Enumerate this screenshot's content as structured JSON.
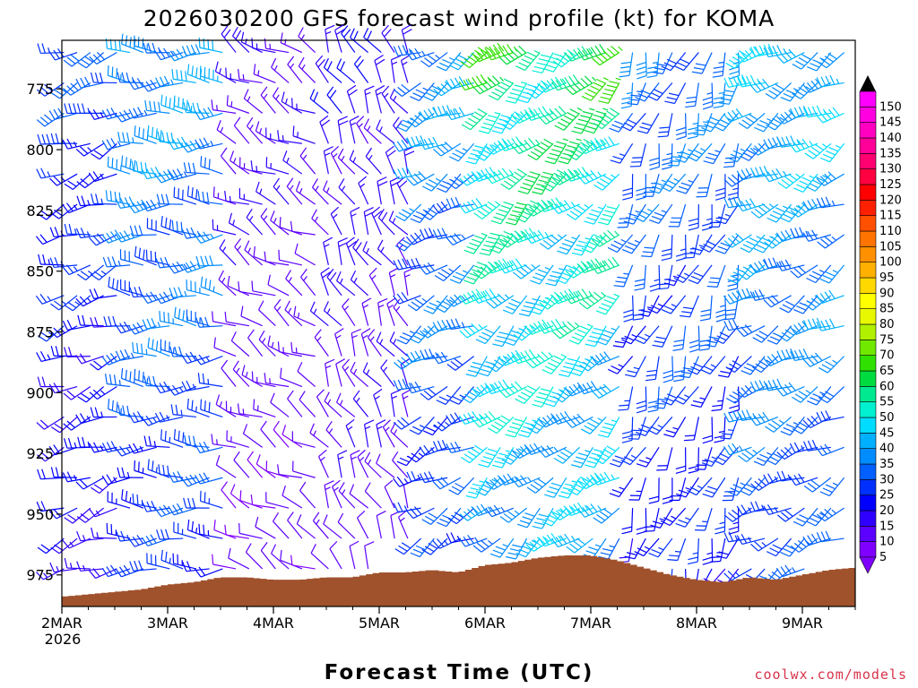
{
  "chart_data": {
    "type": "wind_barb_time_height",
    "title": "2026030200 GFS forecast wind profile (kt) for KOMA",
    "xlabel": "Forecast Time (UTC)",
    "credit": "coolwx.com/models",
    "y_axis": {
      "ticks": [
        775,
        800,
        825,
        850,
        875,
        900,
        925,
        950,
        975
      ],
      "tick_labels": [
        "775",
        "800",
        "825",
        "850",
        "875",
        "900",
        "925",
        "950",
        "975"
      ],
      "range_hpa": [
        755,
        988
      ],
      "inverted": true
    },
    "x_axis": {
      "start_day": 2,
      "end_day": 9.5,
      "tick_days": [
        2,
        3,
        4,
        5,
        6,
        7,
        8,
        9
      ],
      "tick_labels": [
        "2MAR",
        "3MAR",
        "4MAR",
        "5MAR",
        "6MAR",
        "7MAR",
        "8MAR",
        "9MAR"
      ],
      "year_label": "2026"
    },
    "colorbar": {
      "levels": [
        5,
        10,
        15,
        20,
        25,
        30,
        35,
        40,
        45,
        50,
        55,
        60,
        65,
        70,
        75,
        80,
        85,
        90,
        95,
        100,
        105,
        110,
        115,
        120,
        125,
        130,
        135,
        140,
        145,
        150
      ],
      "labels": [
        "5",
        "10",
        "15",
        "20",
        "25",
        "30",
        "35",
        "40",
        "45",
        "50",
        "55",
        "60",
        "65",
        "70",
        "75",
        "80",
        "85",
        "90",
        "95",
        "100",
        "105",
        "110",
        "115",
        "120",
        "125",
        "130",
        "135",
        "140",
        "145",
        "150"
      ],
      "colors": [
        "#7f00ff",
        "#5c00ff",
        "#3000ff",
        "#0000ff",
        "#0030ff",
        "#0060ff",
        "#008cff",
        "#00b0ff",
        "#00dcff",
        "#00f0d0",
        "#00e890",
        "#00dc40",
        "#30e000",
        "#70e800",
        "#b0f000",
        "#e8f800",
        "#ffff00",
        "#ffd800",
        "#ffb000",
        "#ff9000",
        "#ff7400",
        "#ff5000",
        "#ff2000",
        "#ff0000",
        "#ff0040",
        "#ff0070",
        "#ff0098",
        "#ff00c0",
        "#ff00e0",
        "#ff00ff"
      ],
      "low_arrow_color": "#8000ff",
      "high_arrow_color": "#000000"
    },
    "terrain": {
      "color": "#a0522d",
      "surface_pressure_hpa": [
        [
          2.0,
          984
        ],
        [
          2.25,
          983
        ],
        [
          2.5,
          982
        ],
        [
          2.75,
          981
        ],
        [
          3.0,
          979
        ],
        [
          3.25,
          978
        ],
        [
          3.5,
          976
        ],
        [
          3.75,
          976
        ],
        [
          4.0,
          977
        ],
        [
          4.25,
          977
        ],
        [
          4.5,
          976
        ],
        [
          4.75,
          976
        ],
        [
          5.0,
          974
        ],
        [
          5.25,
          974
        ],
        [
          5.5,
          973
        ],
        [
          5.75,
          974
        ],
        [
          6.0,
          971
        ],
        [
          6.25,
          970
        ],
        [
          6.5,
          968
        ],
        [
          6.75,
          967
        ],
        [
          7.0,
          967
        ],
        [
          7.25,
          969
        ],
        [
          7.5,
          972
        ],
        [
          7.75,
          975
        ],
        [
          8.0,
          977
        ],
        [
          8.25,
          978
        ],
        [
          8.5,
          976
        ],
        [
          8.75,
          977
        ],
        [
          9.0,
          975
        ],
        [
          9.25,
          973
        ],
        [
          9.5,
          972
        ]
      ]
    },
    "wind_regimes": [
      {
        "start": 2.0,
        "end": 2.6,
        "direction_deg": 250,
        "speed_kt": 18
      },
      {
        "start": 2.6,
        "end": 3.6,
        "direction_deg": 270,
        "speed_kt": 25
      },
      {
        "start": 3.6,
        "end": 4.4,
        "direction_deg": 300,
        "speed_kt": 10
      },
      {
        "start": 4.4,
        "end": 5.3,
        "direction_deg": 330,
        "speed_kt": 12
      },
      {
        "start": 5.3,
        "end": 6.0,
        "direction_deg": 240,
        "speed_kt": 25
      },
      {
        "start": 6.0,
        "end": 7.3,
        "direction_deg": 230,
        "speed_kt": 38
      },
      {
        "start": 7.3,
        "end": 8.5,
        "direction_deg": 200,
        "speed_kt": 22
      },
      {
        "start": 8.5,
        "end": 9.5,
        "direction_deg": 240,
        "speed_kt": 28
      }
    ]
  }
}
